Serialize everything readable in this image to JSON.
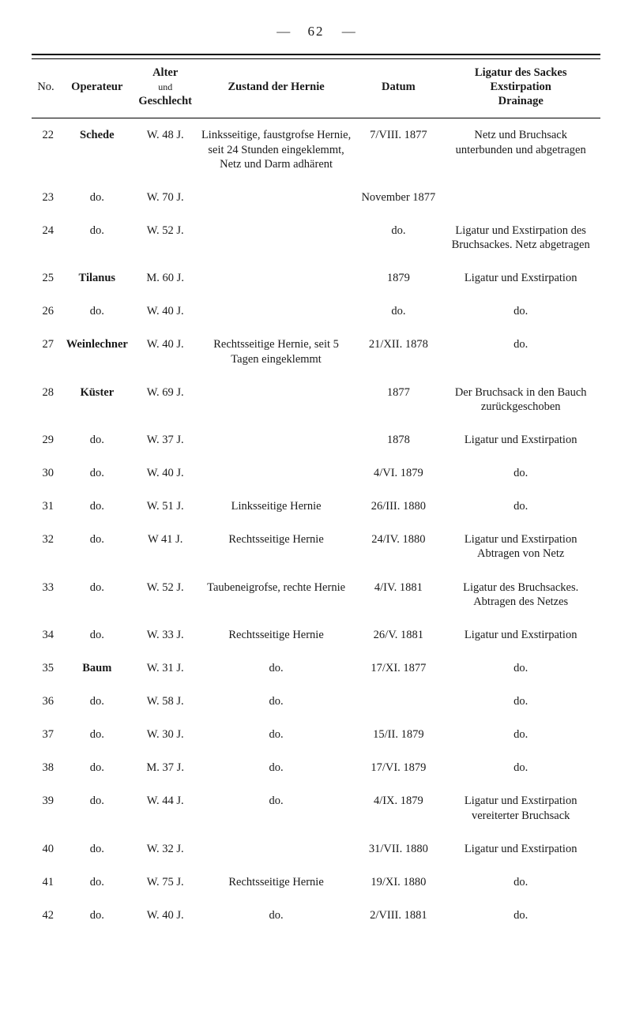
{
  "page_number": "62",
  "headers": {
    "no": "No.",
    "operateur": "Operateur",
    "alter_top": "Alter",
    "alter_mid": "und",
    "alter_bot": "Geschlecht",
    "zustand": "Zustand der Hernie",
    "datum": "Datum",
    "lig1": "Ligatur des Sackes",
    "lig2": "Exstirpation",
    "lig3": "Drainage"
  },
  "rows": [
    {
      "no": "22",
      "op": "Schede",
      "op_bold": true,
      "age": "W. 48 J.",
      "zustand": "Linksseitige, faustgrofse Hernie, seit 24 Stunden eingeklemmt, Netz und Darm adhärent",
      "datum": "7/VIII. 1877",
      "lig": "Netz und Bruchsack unterbunden und abgetragen"
    },
    {
      "no": "23",
      "op": "do.",
      "op_bold": false,
      "age": "W. 70 J.",
      "zustand": "",
      "datum": "November 1877",
      "lig": ""
    },
    {
      "no": "24",
      "op": "do.",
      "op_bold": false,
      "age": "W. 52 J.",
      "zustand": "",
      "datum": "do.",
      "lig": "Ligatur und Exstirpation des Bruchsackes. Netz abgetragen"
    },
    {
      "no": "25",
      "op": "Tilanus",
      "op_bold": true,
      "age": "M. 60 J.",
      "zustand": "",
      "datum": "1879",
      "lig": "Ligatur und Exstirpation"
    },
    {
      "no": "26",
      "op": "do.",
      "op_bold": false,
      "age": "W. 40 J.",
      "zustand": "",
      "datum": "do.",
      "lig": "do."
    },
    {
      "no": "27",
      "op": "Weinlechner",
      "op_bold": true,
      "age": "W. 40 J.",
      "zustand": "Rechtsseitige Hernie, seit 5 Tagen eingeklemmt",
      "datum": "21/XII. 1878",
      "lig": "do."
    },
    {
      "no": "28",
      "op": "Küster",
      "op_bold": true,
      "age": "W. 69 J.",
      "zustand": "",
      "datum": "1877",
      "lig": "Der Bruchsack in den Bauch zurückgeschoben"
    },
    {
      "no": "29",
      "op": "do.",
      "op_bold": false,
      "age": "W. 37 J.",
      "zustand": "",
      "datum": "1878",
      "lig": "Ligatur und Exstirpation"
    },
    {
      "no": "30",
      "op": "do.",
      "op_bold": false,
      "age": "W. 40 J.",
      "zustand": "",
      "datum": "4/VI. 1879",
      "lig": "do."
    },
    {
      "no": "31",
      "op": "do.",
      "op_bold": false,
      "age": "W. 51 J.",
      "zustand": "Linksseitige Hernie",
      "datum": "26/III. 1880",
      "lig": "do."
    },
    {
      "no": "32",
      "op": "do.",
      "op_bold": false,
      "age": "W 41 J.",
      "zustand": "Rechtsseitige Hernie",
      "datum": "24/IV. 1880",
      "lig": "Ligatur und Exstirpation Abtragen von Netz"
    },
    {
      "no": "33",
      "op": "do.",
      "op_bold": false,
      "age": "W. 52 J.",
      "zustand": "Taubeneigrofse, rechte Hernie",
      "datum": "4/IV. 1881",
      "lig": "Ligatur des Bruchsackes. Abtragen des Netzes"
    },
    {
      "no": "34",
      "op": "do.",
      "op_bold": false,
      "age": "W. 33 J.",
      "zustand": "Rechtsseitige Hernie",
      "datum": "26/V. 1881",
      "lig": "Ligatur und Exstirpation"
    },
    {
      "no": "35",
      "op": "Baum",
      "op_bold": true,
      "age": "W. 31 J.",
      "zustand": "do.",
      "datum": "17/XI. 1877",
      "lig": "do."
    },
    {
      "no": "36",
      "op": "do.",
      "op_bold": false,
      "age": "W. 58 J.",
      "zustand": "do.",
      "datum": "",
      "lig": "do."
    },
    {
      "no": "37",
      "op": "do.",
      "op_bold": false,
      "age": "W. 30 J.",
      "zustand": "do.",
      "datum": "15/II. 1879",
      "lig": "do."
    },
    {
      "no": "38",
      "op": "do.",
      "op_bold": false,
      "age": "M. 37 J.",
      "zustand": "do.",
      "datum": "17/VI. 1879",
      "lig": "do."
    },
    {
      "no": "39",
      "op": "do.",
      "op_bold": false,
      "age": "W. 44 J.",
      "zustand": "do.",
      "datum": "4/IX. 1879",
      "lig": "Ligatur und Exstirpation vereiterter Bruchsack"
    },
    {
      "no": "40",
      "op": "do.",
      "op_bold": false,
      "age": "W. 32 J.",
      "zustand": "",
      "datum": "31/VII. 1880",
      "lig": "Ligatur und Exstirpation"
    },
    {
      "no": "41",
      "op": "do.",
      "op_bold": false,
      "age": "W. 75 J.",
      "zustand": "Rechtsseitige Hernie",
      "datum": "19/XI. 1880",
      "lig": "do."
    },
    {
      "no": "42",
      "op": "do.",
      "op_bold": false,
      "age": "W. 40 J.",
      "zustand": "do.",
      "datum": "2/VIII. 1881",
      "lig": "do."
    }
  ]
}
